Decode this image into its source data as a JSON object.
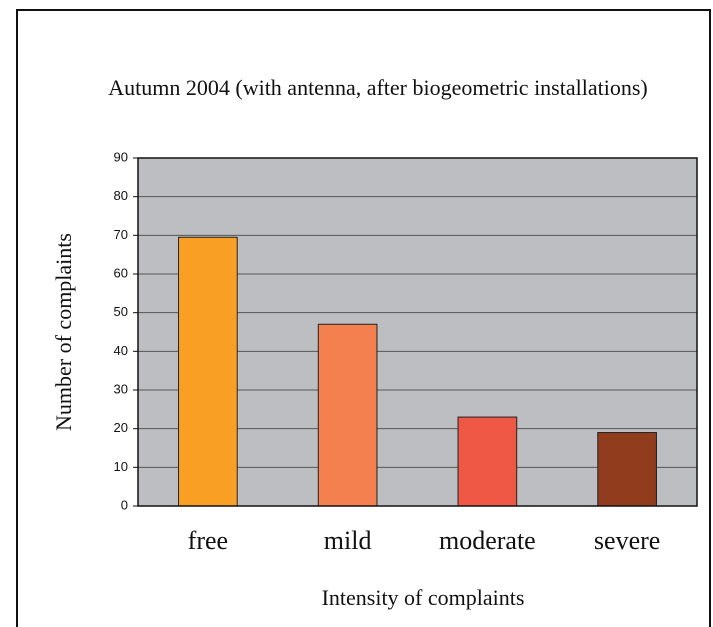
{
  "chart_data": {
    "type": "bar",
    "title": "Autumn 2004 (with antenna, after biogeometric installations)",
    "x_label": "Intensity of complaints",
    "y_label": "Number of complaints",
    "categories": [
      "free",
      "mild",
      "moderate",
      "severe"
    ],
    "values": [
      69.5,
      47,
      23,
      19
    ],
    "colors": [
      "#f9a024",
      "#f47f4f",
      "#ef5844",
      "#923c1e"
    ],
    "ylim": [
      0,
      90
    ],
    "yticks": [
      0,
      10,
      20,
      30,
      40,
      50,
      60,
      70,
      80,
      90
    ],
    "grid": true
  }
}
